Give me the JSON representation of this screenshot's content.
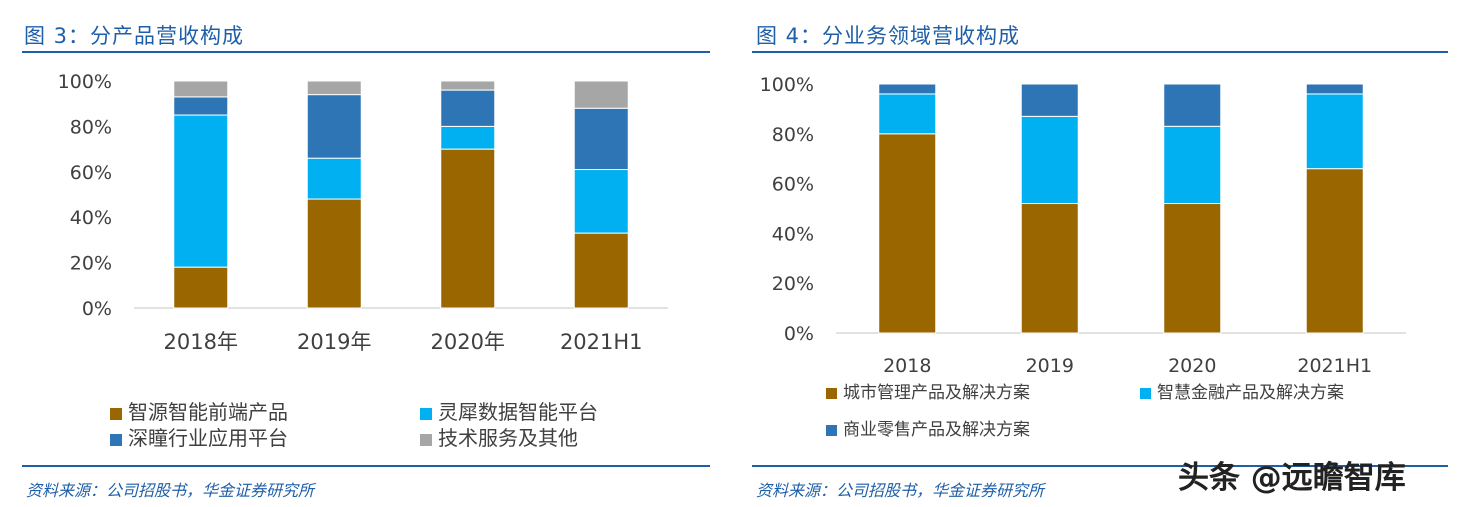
{
  "panels": {
    "left": {
      "title": "图 3：分产品营收构成",
      "source": "资料来源：公司招股书，华金证券研究所"
    },
    "right": {
      "title": "图 4：分业务领域营收构成",
      "source": "资料来源：公司招股书，华金证券研究所"
    }
  },
  "watermark": "头条 @远瞻智库",
  "chart_data": [
    {
      "type": "bar",
      "stacked": true,
      "title": "分产品营收构成",
      "categories": [
        "2018年",
        "2019年",
        "2020年",
        "2021H1"
      ],
      "ylim": [
        0,
        100
      ],
      "yticks": [
        "0%",
        "20%",
        "40%",
        "60%",
        "80%",
        "100%"
      ],
      "series": [
        {
          "name": "智源智能前端产品",
          "color": "#996600",
          "values": [
            18,
            48,
            70,
            33
          ]
        },
        {
          "name": "灵犀数据智能平台",
          "color": "#00b0f0",
          "values": [
            67,
            18,
            10,
            28
          ]
        },
        {
          "name": "深瞳行业应用平台",
          "color": "#2e75b6",
          "values": [
            8,
            28,
            16,
            27
          ]
        },
        {
          "name": "技术服务及其他",
          "color": "#a6a6a6",
          "values": [
            7,
            6,
            4,
            12
          ]
        }
      ],
      "legend_position": "bottom"
    },
    {
      "type": "bar",
      "stacked": true,
      "title": "分业务领域营收构成",
      "categories": [
        "2018",
        "2019",
        "2020",
        "2021H1"
      ],
      "ylim": [
        0,
        100
      ],
      "yticks": [
        "0%",
        "20%",
        "40%",
        "60%",
        "80%",
        "100%"
      ],
      "series": [
        {
          "name": "城市管理产品及解决方案",
          "color": "#996600",
          "values": [
            80,
            52,
            52,
            66
          ]
        },
        {
          "name": "智慧金融产品及解决方案",
          "color": "#00b0f0",
          "values": [
            16,
            35,
            31,
            30
          ]
        },
        {
          "name": "商业零售产品及解决方案",
          "color": "#2e75b6",
          "values": [
            4,
            13,
            17,
            4
          ]
        }
      ],
      "legend_position": "bottom"
    }
  ]
}
